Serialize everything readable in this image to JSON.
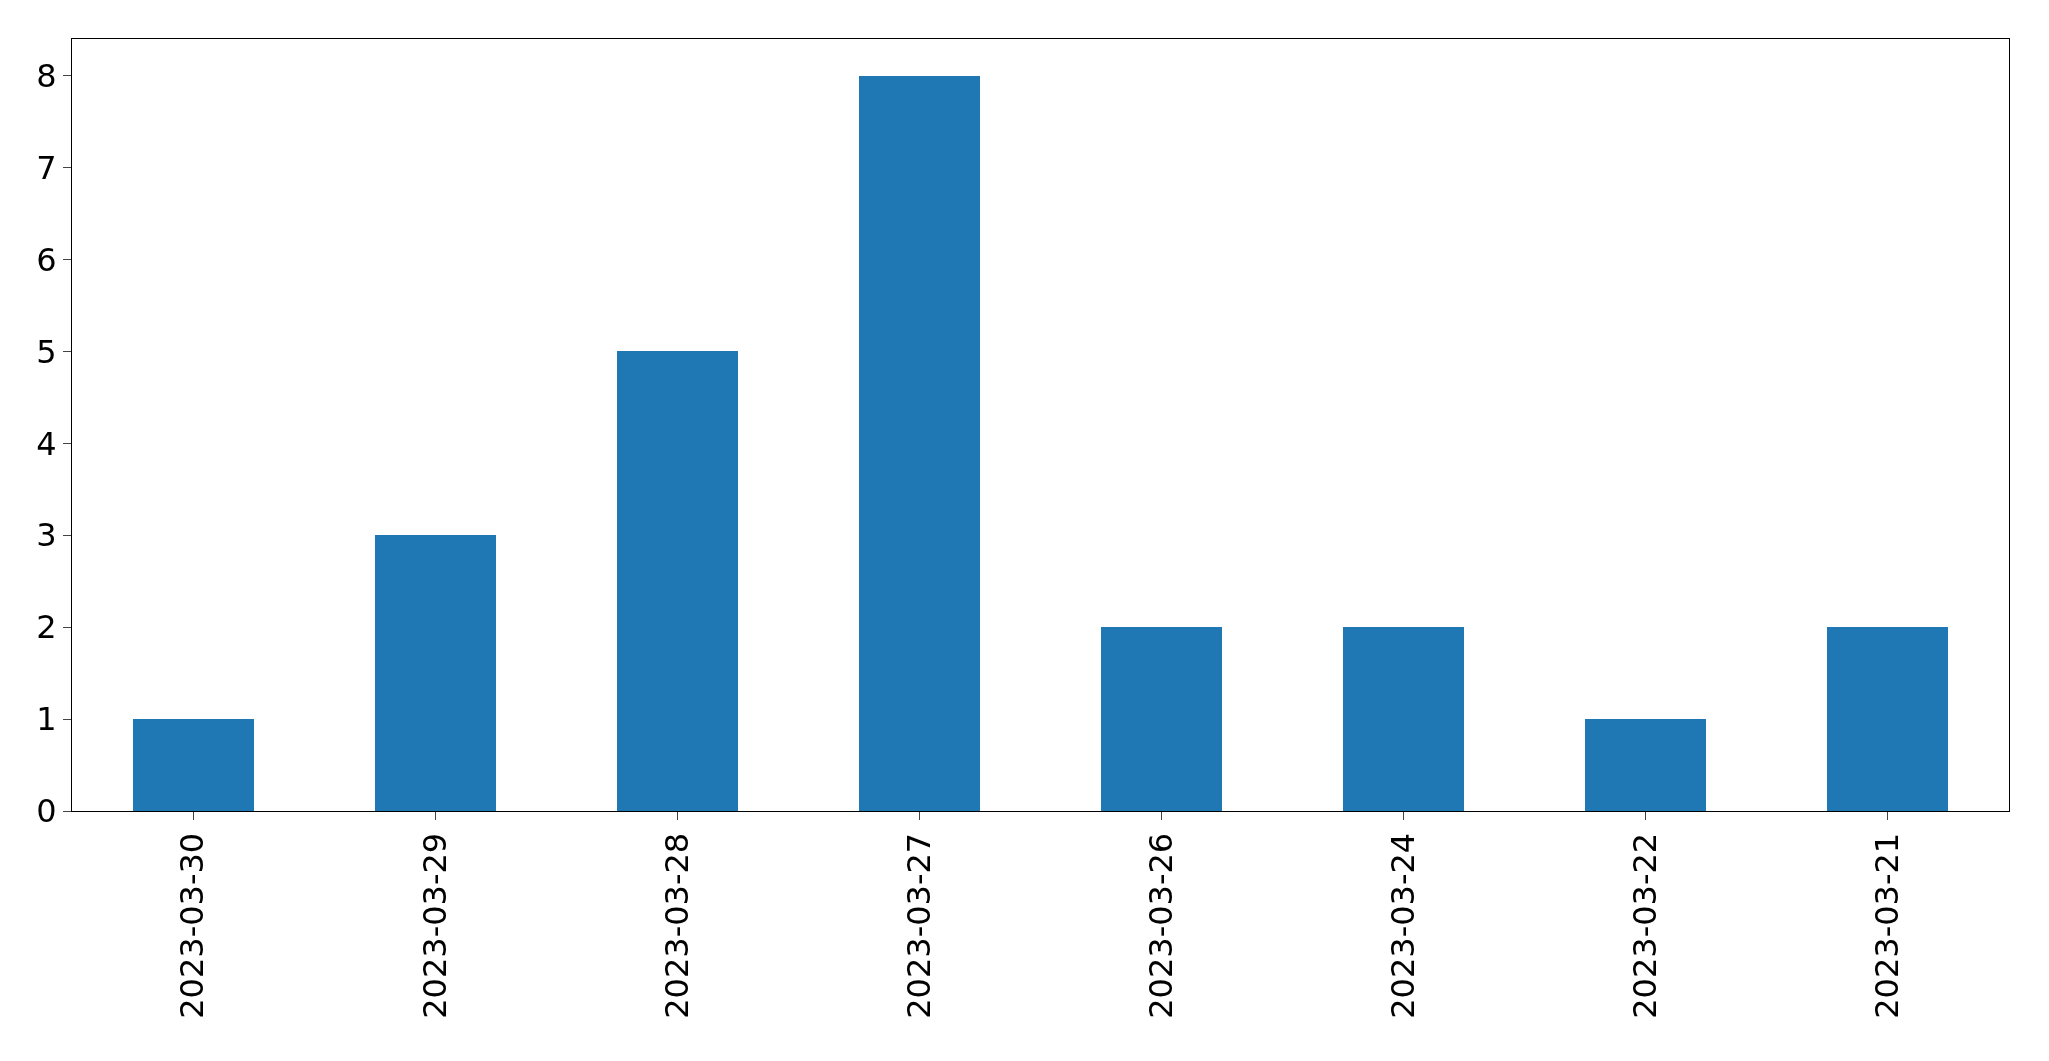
{
  "chart_data": {
    "type": "bar",
    "categories": [
      "2023-03-30",
      "2023-03-29",
      "2023-03-28",
      "2023-03-27",
      "2023-03-26",
      "2023-03-24",
      "2023-03-22",
      "2023-03-21"
    ],
    "values": [
      1,
      3,
      5,
      8,
      2,
      2,
      1,
      2
    ],
    "color": "#1f77b4",
    "ylim": [
      0,
      8.4
    ],
    "yticks": [
      0,
      1,
      2,
      3,
      4,
      5,
      6,
      7,
      8
    ]
  }
}
